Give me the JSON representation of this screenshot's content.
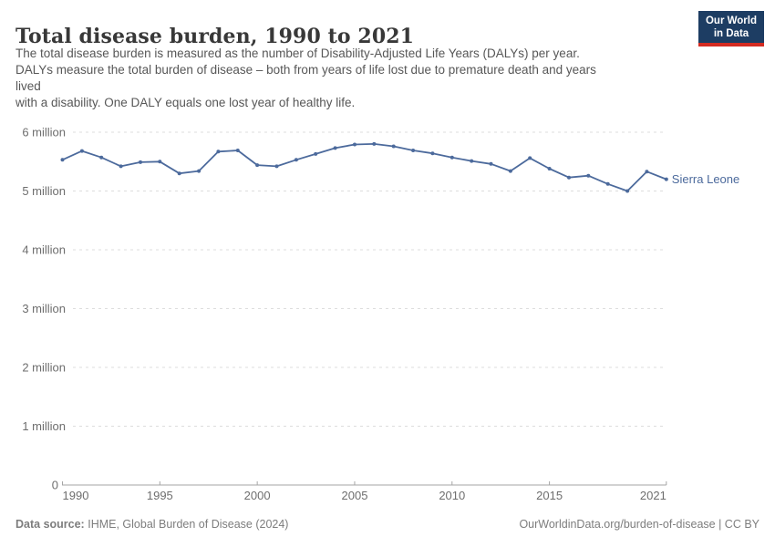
{
  "header": {
    "title": "Total disease burden, 1990 to 2021",
    "subtitle_lines": [
      "The total disease burden is measured as the number of Disability-Adjusted Life Years (DALYs) per year.",
      "DALYs measure the total burden of disease – both from years of life lost due to premature death and years",
      "lived",
      "with a disability. One DALY equals one lost year of healthy life."
    ],
    "logo": {
      "line1": "Our World",
      "line2": "in Data",
      "bg_color": "#1d3d63",
      "accent_color": "#d42b21"
    }
  },
  "chart_data": {
    "type": "line",
    "title": "Total disease burden, 1990 to 2021",
    "xlabel": "",
    "ylabel": "",
    "unit": "DALYs (Disability-Adjusted Life Years) per year",
    "xlim": [
      1990,
      2021
    ],
    "ylim": [
      0,
      6000000
    ],
    "grid": "horizontal-dashed",
    "legend_position": "entity-label-right-of-line-end",
    "x": [
      1990,
      1991,
      1992,
      1993,
      1994,
      1995,
      1996,
      1997,
      1998,
      1999,
      2000,
      2001,
      2002,
      2003,
      2004,
      2005,
      2006,
      2007,
      2008,
      2009,
      2010,
      2011,
      2012,
      2013,
      2014,
      2015,
      2016,
      2017,
      2018,
      2019,
      2020,
      2021
    ],
    "series": [
      {
        "name": "Sierra Leone",
        "color": "#4c6a9c",
        "values": [
          5530000,
          5680000,
          5570000,
          5420000,
          5490000,
          5500000,
          5300000,
          5340000,
          5670000,
          5690000,
          5440000,
          5420000,
          5530000,
          5630000,
          5730000,
          5790000,
          5800000,
          5760000,
          5690000,
          5640000,
          5570000,
          5510000,
          5460000,
          5340000,
          5560000,
          5380000,
          5230000,
          5260000,
          5120000,
          5000000,
          5330000,
          5200000
        ]
      }
    ],
    "y_ticks": [
      {
        "value": 0,
        "label": "0"
      },
      {
        "value": 1000000,
        "label": "1 million"
      },
      {
        "value": 2000000,
        "label": "2 million"
      },
      {
        "value": 3000000,
        "label": "3 million"
      },
      {
        "value": 4000000,
        "label": "4 million"
      },
      {
        "value": 5000000,
        "label": "5 million"
      },
      {
        "value": 6000000,
        "label": "6 million"
      }
    ],
    "x_ticks": [
      {
        "value": 1990,
        "label": "1990"
      },
      {
        "value": 1995,
        "label": "1995"
      },
      {
        "value": 2000,
        "label": "2000"
      },
      {
        "value": 2005,
        "label": "2005"
      },
      {
        "value": 2010,
        "label": "2010"
      },
      {
        "value": 2015,
        "label": "2015"
      },
      {
        "value": 2021,
        "label": "2021"
      }
    ],
    "colors": {
      "gridline": "#dddddd",
      "axis": "#a5a5a5",
      "tick_label": "#6e6e6e"
    }
  },
  "footer": {
    "datasource_label": "Data source:",
    "datasource_value": "IHME, Global Burden of Disease (2024)",
    "attribution": "OurWorldinData.org/burden-of-disease | CC BY"
  }
}
